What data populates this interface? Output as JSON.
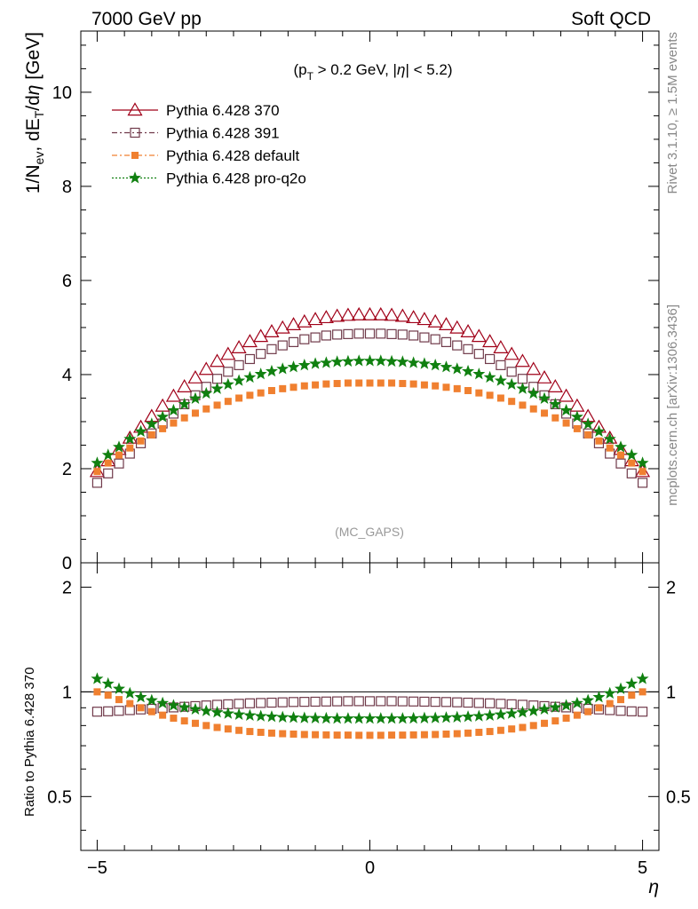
{
  "header": {
    "left": "7000 GeV pp",
    "right": "Soft QCD"
  },
  "side_labels": {
    "rivet": "Rivet 3.1.10, ≥ 1.5M events",
    "mcplots": "mcplots.cern.ch [arXiv:1306.3436]"
  },
  "chart_data": [
    {
      "type": "scatter",
      "title": "",
      "annotation": "(p_T > 0.2 GeV, |η| < 5.2)",
      "watermark": "(MC_GAPS)",
      "ylabel": "1/N_ev, dE_T/dη [GeV]",
      "xlim": [
        -5.3,
        5.3
      ],
      "ylim": [
        0,
        11.3
      ],
      "yticks": [
        0,
        2,
        4,
        6,
        8,
        10
      ],
      "legend_position": "top-left",
      "x": [
        -5.0,
        -4.8,
        -4.6,
        -4.4,
        -4.2,
        -4.0,
        -3.8,
        -3.6,
        -3.4,
        -3.2,
        -3.0,
        -2.8,
        -2.6,
        -2.4,
        -2.2,
        -2.0,
        -1.8,
        -1.6,
        -1.4,
        -1.2,
        -1.0,
        -0.8,
        -0.6,
        -0.4,
        -0.2,
        0.0,
        0.2,
        0.4,
        0.6,
        0.8,
        1.0,
        1.2,
        1.4,
        1.6,
        1.8,
        2.0,
        2.2,
        2.4,
        2.6,
        2.8,
        3.0,
        3.2,
        3.4,
        3.6,
        3.8,
        4.0,
        4.2,
        4.4,
        4.6,
        4.8,
        5.0
      ],
      "series": [
        {
          "name": "Pythia 6.428 370",
          "color": "#a00018",
          "marker": "triangle-open",
          "values": [
            1.94,
            2.17,
            2.41,
            2.65,
            2.88,
            3.11,
            3.33,
            3.54,
            3.74,
            3.93,
            4.11,
            4.28,
            4.43,
            4.57,
            4.7,
            4.81,
            4.91,
            4.99,
            5.06,
            5.12,
            5.17,
            5.21,
            5.24,
            5.26,
            5.27,
            5.27,
            5.27,
            5.26,
            5.24,
            5.21,
            5.17,
            5.12,
            5.06,
            4.99,
            4.91,
            4.81,
            4.7,
            4.57,
            4.43,
            4.28,
            4.11,
            3.93,
            3.74,
            3.54,
            3.33,
            3.11,
            2.88,
            2.65,
            2.41,
            2.17,
            1.94
          ]
        },
        {
          "name": "Pythia 6.428 391",
          "color": "#703a4a",
          "marker": "square-open",
          "values": [
            1.7,
            1.9,
            2.11,
            2.32,
            2.54,
            2.75,
            2.96,
            3.17,
            3.37,
            3.56,
            3.74,
            3.91,
            4.06,
            4.2,
            4.33,
            4.44,
            4.54,
            4.62,
            4.69,
            4.75,
            4.79,
            4.83,
            4.85,
            4.86,
            4.87,
            4.87,
            4.87,
            4.86,
            4.85,
            4.83,
            4.79,
            4.75,
            4.69,
            4.62,
            4.54,
            4.44,
            4.33,
            4.2,
            4.06,
            3.91,
            3.74,
            3.56,
            3.37,
            3.17,
            2.96,
            2.75,
            2.54,
            2.32,
            2.11,
            1.9,
            1.7
          ]
        },
        {
          "name": "Pythia 6.428 default",
          "color": "#f08030",
          "marker": "square-filled",
          "values": [
            1.94,
            2.12,
            2.29,
            2.44,
            2.59,
            2.72,
            2.85,
            2.97,
            3.08,
            3.18,
            3.27,
            3.35,
            3.43,
            3.5,
            3.56,
            3.61,
            3.66,
            3.7,
            3.73,
            3.76,
            3.78,
            3.8,
            3.81,
            3.82,
            3.82,
            3.82,
            3.82,
            3.82,
            3.81,
            3.8,
            3.78,
            3.76,
            3.73,
            3.7,
            3.66,
            3.61,
            3.56,
            3.5,
            3.43,
            3.35,
            3.27,
            3.18,
            3.08,
            2.97,
            2.85,
            2.72,
            2.59,
            2.44,
            2.29,
            2.12,
            1.94
          ]
        },
        {
          "name": "Pythia 6.428 pro-q2o",
          "color": "#108010",
          "marker": "star",
          "values": [
            2.12,
            2.29,
            2.46,
            2.63,
            2.79,
            2.95,
            3.1,
            3.24,
            3.37,
            3.49,
            3.6,
            3.7,
            3.79,
            3.87,
            3.94,
            4.01,
            4.07,
            4.12,
            4.16,
            4.2,
            4.23,
            4.25,
            4.27,
            4.28,
            4.29,
            4.29,
            4.29,
            4.28,
            4.27,
            4.25,
            4.23,
            4.2,
            4.16,
            4.12,
            4.07,
            4.01,
            3.94,
            3.87,
            3.79,
            3.7,
            3.6,
            3.49,
            3.37,
            3.24,
            3.1,
            2.95,
            2.79,
            2.63,
            2.46,
            2.29,
            2.12
          ]
        }
      ]
    },
    {
      "type": "scatter",
      "title": "",
      "xlabel": "η",
      "ylabel": "Ratio to Pythia 6.428 370",
      "xlim": [
        -5.3,
        5.3
      ],
      "xticks": [
        -5,
        0,
        5
      ],
      "ylim": [
        0.35,
        2.35
      ],
      "yticks": [
        0.5,
        1,
        2
      ],
      "scale": "log",
      "reference_line": 1,
      "x": [
        -5.0,
        -4.8,
        -4.6,
        -4.4,
        -4.2,
        -4.0,
        -3.8,
        -3.6,
        -3.4,
        -3.2,
        -3.0,
        -2.8,
        -2.6,
        -2.4,
        -2.2,
        -2.0,
        -1.8,
        -1.6,
        -1.4,
        -1.2,
        -1.0,
        -0.8,
        -0.6,
        -0.4,
        -0.2,
        0.0,
        0.2,
        0.4,
        0.6,
        0.8,
        1.0,
        1.2,
        1.4,
        1.6,
        1.8,
        2.0,
        2.2,
        2.4,
        2.6,
        2.8,
        3.0,
        3.2,
        3.4,
        3.6,
        3.8,
        4.0,
        4.2,
        4.4,
        4.6,
        4.8,
        5.0
      ],
      "series": [
        {
          "name": "Pythia 6.428 391",
          "color": "#703a4a",
          "marker": "square-open",
          "values": [
            0.877,
            0.879,
            0.882,
            0.886,
            0.89,
            0.894,
            0.898,
            0.902,
            0.906,
            0.91,
            0.914,
            0.918,
            0.921,
            0.924,
            0.927,
            0.929,
            0.931,
            0.933,
            0.935,
            0.936,
            0.937,
            0.938,
            0.939,
            0.94,
            0.94,
            0.94,
            0.94,
            0.94,
            0.939,
            0.938,
            0.937,
            0.936,
            0.935,
            0.933,
            0.931,
            0.929,
            0.927,
            0.924,
            0.921,
            0.918,
            0.914,
            0.91,
            0.906,
            0.902,
            0.898,
            0.894,
            0.89,
            0.886,
            0.882,
            0.879,
            0.877
          ]
        },
        {
          "name": "Pythia 6.428 default",
          "color": "#f08030",
          "marker": "square-filled",
          "values": [
            1.0,
            0.978,
            0.95,
            0.925,
            0.9,
            0.877,
            0.857,
            0.84,
            0.825,
            0.812,
            0.8,
            0.79,
            0.782,
            0.775,
            0.769,
            0.765,
            0.761,
            0.758,
            0.756,
            0.754,
            0.753,
            0.752,
            0.751,
            0.751,
            0.75,
            0.75,
            0.75,
            0.751,
            0.751,
            0.752,
            0.753,
            0.754,
            0.756,
            0.758,
            0.761,
            0.765,
            0.769,
            0.775,
            0.782,
            0.79,
            0.8,
            0.812,
            0.825,
            0.84,
            0.857,
            0.877,
            0.9,
            0.925,
            0.95,
            0.978,
            1.0
          ]
        },
        {
          "name": "Pythia 6.428 pro-q2o",
          "color": "#108010",
          "marker": "star",
          "values": [
            1.09,
            1.055,
            1.02,
            0.99,
            0.965,
            0.945,
            0.928,
            0.914,
            0.902,
            0.891,
            0.881,
            0.873,
            0.866,
            0.86,
            0.855,
            0.851,
            0.848,
            0.845,
            0.843,
            0.841,
            0.84,
            0.839,
            0.838,
            0.838,
            0.838,
            0.838,
            0.838,
            0.838,
            0.838,
            0.839,
            0.84,
            0.841,
            0.843,
            0.845,
            0.848,
            0.851,
            0.855,
            0.86,
            0.866,
            0.873,
            0.881,
            0.891,
            0.902,
            0.914,
            0.928,
            0.945,
            0.965,
            0.99,
            1.02,
            1.055,
            1.09
          ]
        }
      ]
    }
  ]
}
